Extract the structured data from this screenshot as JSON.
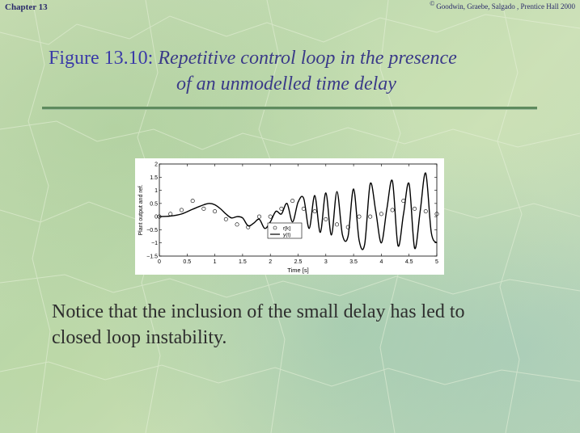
{
  "header": {
    "chapter": "Chapter 13",
    "copyright_symbol": "©",
    "credit": "Goodwin, Graebe, Salgado , Prentice Hall 2000"
  },
  "slide": {
    "figure_number": "Figure 13.10",
    "figure_sep": ":",
    "caption_line1": "Repetitive control loop in the presence",
    "caption_line2": "of an unmodelled time delay",
    "body_line1": "Notice that the inclusion of the small delay has led to",
    "body_line2": "closed loop instability."
  },
  "chart_data": {
    "type": "line",
    "xlabel": "Time [s]",
    "ylabel": "Plant output and ref.",
    "xlim": [
      0,
      5
    ],
    "ylim": [
      -1.5,
      2
    ],
    "xticks": [
      "0",
      "0.5",
      "1",
      "1.5",
      "2",
      "2.5",
      "3",
      "3.5",
      "4",
      "4.5",
      "5"
    ],
    "yticks": [
      "2",
      "1.5",
      "1",
      "0.5",
      "0",
      "−0.5",
      "−1",
      "−1.5"
    ],
    "legend": "lower-center",
    "series": [
      {
        "name": "r[k]",
        "style": "circles",
        "x": [
          0,
          0.2,
          0.4,
          0.6,
          0.8,
          1.0,
          1.2,
          1.4,
          1.6,
          1.8,
          2.0,
          2.2,
          2.4,
          2.6,
          2.8,
          3.0,
          3.2,
          3.4,
          3.6,
          3.8,
          4.0,
          4.2,
          4.4,
          4.6,
          4.8,
          5.0
        ],
        "y": [
          0.0,
          0.1,
          0.25,
          0.6,
          0.3,
          0.2,
          -0.1,
          -0.3,
          -0.4,
          0.0,
          0.0,
          0.3,
          0.6,
          0.3,
          0.2,
          -0.1,
          -0.3,
          -0.4,
          0.0,
          0.0,
          0.1,
          0.25,
          0.6,
          0.3,
          0.2,
          0.1
        ]
      },
      {
        "name": "y(t)",
        "style": "line",
        "x": [
          0,
          0.2,
          0.4,
          0.6,
          0.8,
          0.9,
          1.0,
          1.1,
          1.2,
          1.3,
          1.4,
          1.5,
          1.6,
          1.7,
          1.8,
          1.9,
          2.0,
          2.1,
          2.2,
          2.3,
          2.4,
          2.5,
          2.6,
          2.7,
          2.8,
          2.9,
          3.0,
          3.1,
          3.2,
          3.3,
          3.4,
          3.5,
          3.6,
          3.7,
          3.8,
          3.9,
          4.0,
          4.1,
          4.2,
          4.3,
          4.4,
          4.5,
          4.6,
          4.7,
          4.8,
          4.9,
          5.0
        ],
        "y": [
          0.0,
          0.02,
          0.1,
          0.28,
          0.45,
          0.5,
          0.45,
          0.3,
          0.1,
          -0.05,
          0.0,
          -0.05,
          -0.35,
          -0.25,
          -0.1,
          -0.45,
          -0.2,
          0.2,
          0.1,
          0.5,
          -0.2,
          0.55,
          0.7,
          -0.45,
          0.8,
          -0.6,
          0.9,
          -0.7,
          0.95,
          -0.7,
          -0.75,
          1.05,
          -0.9,
          -1.05,
          1.25,
          0.2,
          -1.0,
          0.3,
          1.35,
          -1.1,
          0.1,
          1.25,
          -1.2,
          0.2,
          1.65,
          -0.6,
          -1.0
        ]
      }
    ]
  }
}
